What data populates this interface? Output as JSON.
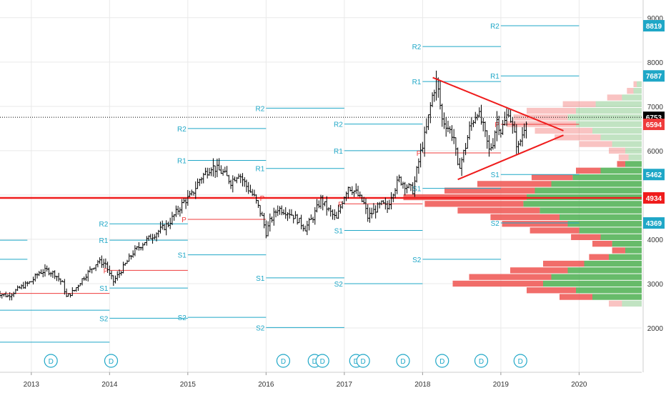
{
  "chart_data": {
    "type": "candlestick",
    "x_axis": {
      "ticks": [
        "2013",
        "2014",
        "2015",
        "2016",
        "2017",
        "2018",
        "2019",
        "2020"
      ],
      "range": [
        2012.6,
        2020.8
      ]
    },
    "y_axis": {
      "ticks": [
        2000,
        3000,
        4000,
        5000,
        6000,
        7000,
        8000,
        9000
      ],
      "range": [
        1000,
        9400
      ],
      "tick_labels": [
        "2000",
        "3000",
        "4000",
        "5000",
        "6000",
        "7000",
        "8000",
        "9000"
      ]
    },
    "price_tags": [
      {
        "value": 8819,
        "label": "8819",
        "color": "#1fa7c7",
        "text_color": "#ffffff"
      },
      {
        "value": 7687,
        "label": "7687",
        "color": "#1fa7c7",
        "text_color": "#ffffff"
      },
      {
        "value": 6753,
        "label": "6753",
        "color": "#000000",
        "text_color": "#ffffff"
      },
      {
        "value": 6594,
        "label": "6594",
        "color": "#ef3b3b",
        "text_color": "#ffffff"
      },
      {
        "value": 5462,
        "label": "5462",
        "color": "#1fa7c7",
        "text_color": "#ffffff"
      },
      {
        "value": 4934,
        "label": "4934",
        "color": "#ef1c1c",
        "text_color": "#ffffff"
      },
      {
        "value": 4369,
        "label": "4369",
        "color": "#1fa7c7",
        "text_color": "#ffffff"
      }
    ],
    "price_series": [
      [
        2012.55,
        2800
      ],
      [
        2012.7,
        2720
      ],
      [
        2012.85,
        2900
      ],
      [
        2013.0,
        3050
      ],
      [
        2013.1,
        3250
      ],
      [
        2013.2,
        3300
      ],
      [
        2013.3,
        3220
      ],
      [
        2013.4,
        3000
      ],
      [
        2013.45,
        2700
      ],
      [
        2013.55,
        2850
      ],
      [
        2013.65,
        3100
      ],
      [
        2013.75,
        3300
      ],
      [
        2013.85,
        3500
      ],
      [
        2013.95,
        3450
      ],
      [
        2014.0,
        3200
      ],
      [
        2014.05,
        3050
      ],
      [
        2014.15,
        3300
      ],
      [
        2014.3,
        3700
      ],
      [
        2014.45,
        3950
      ],
      [
        2014.6,
        4150
      ],
      [
        2014.75,
        4350
      ],
      [
        2014.85,
        4600
      ],
      [
        2014.95,
        4850
      ],
      [
        2015.05,
        5000
      ],
      [
        2015.15,
        5350
      ],
      [
        2015.3,
        5650
      ],
      [
        2015.45,
        5500
      ],
      [
        2015.55,
        5300
      ],
      [
        2015.65,
        5500
      ],
      [
        2015.75,
        5200
      ],
      [
        2015.85,
        4950
      ],
      [
        2015.95,
        4500
      ],
      [
        2016.0,
        4150
      ],
      [
        2016.05,
        4400
      ],
      [
        2016.15,
        4700
      ],
      [
        2016.3,
        4600
      ],
      [
        2016.4,
        4450
      ],
      [
        2016.5,
        4250
      ],
      [
        2016.6,
        4500
      ],
      [
        2016.7,
        4900
      ],
      [
        2016.8,
        4650
      ],
      [
        2016.9,
        4450
      ],
      [
        2016.98,
        4900
      ],
      [
        2017.05,
        5200
      ],
      [
        2017.15,
        5050
      ],
      [
        2017.25,
        4800
      ],
      [
        2017.3,
        4500
      ],
      [
        2017.38,
        4650
      ],
      [
        2017.48,
        4800
      ],
      [
        2017.55,
        4700
      ],
      [
        2017.6,
        5000
      ],
      [
        2017.7,
        5350
      ],
      [
        2017.8,
        5200
      ],
      [
        2017.88,
        5100
      ],
      [
        2017.92,
        5500
      ],
      [
        2017.98,
        6000
      ],
      [
        2018.05,
        6500
      ],
      [
        2018.12,
        7200
      ],
      [
        2018.18,
        7600
      ],
      [
        2018.25,
        6700
      ],
      [
        2018.3,
        6600
      ],
      [
        2018.4,
        6300
      ],
      [
        2018.45,
        5600
      ],
      [
        2018.5,
        5800
      ],
      [
        2018.55,
        6100
      ],
      [
        2018.6,
        6500
      ],
      [
        2018.7,
        6900
      ],
      [
        2018.78,
        6500
      ],
      [
        2018.85,
        6000
      ],
      [
        2018.9,
        6200
      ],
      [
        2018.95,
        6700
      ],
      [
        2019.0,
        6450
      ],
      [
        2019.05,
        6650
      ],
      [
        2019.1,
        6900
      ],
      [
        2019.18,
        6300
      ],
      [
        2019.22,
        6050
      ],
      [
        2019.28,
        6400
      ],
      [
        2019.33,
        6753
      ]
    ],
    "pivot_lines": [
      {
        "label": "R2",
        "x0": 2012.6,
        "x1": 2012.95,
        "value": 3980,
        "color": "#1fa7c7"
      },
      {
        "label": "R1",
        "x0": 2012.6,
        "x1": 2012.95,
        "value": 3550,
        "color": "#1fa7c7"
      },
      {
        "label": "P",
        "x0": 2012.6,
        "x1": 2014.0,
        "value": 2780,
        "color": "#ef3b3b"
      },
      {
        "label": "S1",
        "x0": 2012.6,
        "x1": 2014.0,
        "value": 2400,
        "color": "#1fa7c7"
      },
      {
        "label": "S2",
        "x0": 2012.6,
        "x1": 2014.0,
        "value": 1680,
        "color": "#1fa7c7"
      },
      {
        "label": "R2",
        "x0": 2014.0,
        "x1": 2015.0,
        "value": 4350,
        "color": "#1fa7c7"
      },
      {
        "label": "R1",
        "x0": 2014.0,
        "x1": 2015.0,
        "value": 3980,
        "color": "#1fa7c7"
      },
      {
        "label": "P",
        "x0": 2014.0,
        "x1": 2015.0,
        "value": 3300,
        "color": "#ef3b3b"
      },
      {
        "label": "S1",
        "x0": 2014.0,
        "x1": 2015.0,
        "value": 2900,
        "color": "#1fa7c7"
      },
      {
        "label": "S2",
        "x0": 2014.0,
        "x1": 2015.0,
        "value": 2220,
        "color": "#1fa7c7"
      },
      {
        "label": "R2",
        "x0": 2015.0,
        "x1": 2016.0,
        "value": 6500,
        "color": "#1fa7c7"
      },
      {
        "label": "R1",
        "x0": 2015.0,
        "x1": 2016.0,
        "value": 5780,
        "color": "#1fa7c7"
      },
      {
        "label": "P",
        "x0": 2015.0,
        "x1": 2016.0,
        "value": 4450,
        "color": "#ef3b3b"
      },
      {
        "label": "S1",
        "x0": 2015.0,
        "x1": 2016.0,
        "value": 3650,
        "color": "#1fa7c7"
      },
      {
        "label": "S2",
        "x0": 2015.0,
        "x1": 2016.0,
        "value": 2240,
        "color": "#1fa7c7"
      },
      {
        "label": "R2",
        "x0": 2016.0,
        "x1": 2017.0,
        "value": 6960,
        "color": "#1fa7c7"
      },
      {
        "label": "R1",
        "x0": 2016.0,
        "x1": 2017.0,
        "value": 5600,
        "color": "#1fa7c7"
      },
      {
        "label": "P",
        "x0": 2016.0,
        "x1": 2017.0,
        "value": 4934,
        "color": "#ef3b3b"
      },
      {
        "label": "S1",
        "x0": 2016.0,
        "x1": 2017.0,
        "value": 3130,
        "color": "#1fa7c7"
      },
      {
        "label": "S2",
        "x0": 2016.0,
        "x1": 2017.0,
        "value": 2010,
        "color": "#1fa7c7"
      },
      {
        "label": "R2",
        "x0": 2017.0,
        "x1": 2018.0,
        "value": 6600,
        "color": "#1fa7c7"
      },
      {
        "label": "R1",
        "x0": 2017.0,
        "x1": 2018.0,
        "value": 6000,
        "color": "#1fa7c7"
      },
      {
        "label": "P",
        "x0": 2017.0,
        "x1": 2018.0,
        "value": 4800,
        "color": "#ef3b3b"
      },
      {
        "label": "S1",
        "x0": 2017.0,
        "x1": 2018.0,
        "value": 4200,
        "color": "#1fa7c7"
      },
      {
        "label": "S2",
        "x0": 2017.0,
        "x1": 2018.0,
        "value": 3000,
        "color": "#1fa7c7"
      },
      {
        "label": "R2",
        "x0": 2018.0,
        "x1": 2019.0,
        "value": 8350,
        "color": "#1fa7c7"
      },
      {
        "label": "R1",
        "x0": 2018.0,
        "x1": 2019.0,
        "value": 7560,
        "color": "#1fa7c7"
      },
      {
        "label": "P",
        "x0": 2018.0,
        "x1": 2019.0,
        "value": 5950,
        "color": "#ef3b3b"
      },
      {
        "label": "S1",
        "x0": 2018.0,
        "x1": 2019.0,
        "value": 5150,
        "color": "#1fa7c7"
      },
      {
        "label": "S2",
        "x0": 2018.0,
        "x1": 2019.0,
        "value": 3550,
        "color": "#1fa7c7"
      },
      {
        "label": "R2",
        "x0": 2019.0,
        "x1": 2020.0,
        "value": 8819,
        "color": "#1fa7c7"
      },
      {
        "label": "R1",
        "x0": 2019.0,
        "x1": 2020.0,
        "value": 7687,
        "color": "#1fa7c7"
      },
      {
        "label": "P",
        "x0": 2019.0,
        "x1": 2020.0,
        "value": 6594,
        "color": "#ef3b3b"
      },
      {
        "label": "S1",
        "x0": 2019.0,
        "x1": 2020.0,
        "value": 5462,
        "color": "#1fa7c7"
      },
      {
        "label": "S2",
        "x0": 2019.0,
        "x1": 2020.0,
        "value": 4369,
        "color": "#1fa7c7"
      }
    ],
    "horizontal_line": {
      "value": 4934,
      "color": "#ef1c1c"
    },
    "dotted_line": {
      "value": 6753,
      "color": "#000000"
    },
    "triangle": {
      "color": "#ef1c1c",
      "upper": [
        [
          2018.13,
          7650
        ],
        [
          2019.8,
          6450
        ]
      ],
      "lower": [
        [
          2018.45,
          5350
        ],
        [
          2019.8,
          6350
        ]
      ]
    },
    "dividend_markers": [
      2013.25,
      2014.02,
      2016.22,
      2016.62,
      2016.72,
      2017.15,
      2017.24,
      2017.75,
      2018.25,
      2018.75,
      2019.25
    ],
    "volume_profile": [
      {
        "price": 7500,
        "up": 0.03,
        "down": 0.02
      },
      {
        "price": 7350,
        "up": 0.05,
        "down": 0.04
      },
      {
        "price": 7200,
        "up": 0.12,
        "down": 0.09
      },
      {
        "price": 7050,
        "up": 0.28,
        "down": 0.2
      },
      {
        "price": 6900,
        "up": 0.4,
        "down": 0.3
      },
      {
        "price": 6750,
        "up": 0.45,
        "down": 0.33
      },
      {
        "price": 6600,
        "up": 0.4,
        "down": 0.42
      },
      {
        "price": 6450,
        "up": 0.3,
        "down": 0.35
      },
      {
        "price": 6300,
        "up": 0.25,
        "down": 0.28
      },
      {
        "price": 6150,
        "up": 0.18,
        "down": 0.2
      },
      {
        "price": 6000,
        "up": 0.1,
        "down": 0.1
      },
      {
        "price": 5850,
        "up": 0.08,
        "down": 0.06
      },
      {
        "price": 5700,
        "up": 0.1,
        "down": 0.05
      },
      {
        "price": 5550,
        "up": 0.25,
        "down": 0.15
      },
      {
        "price": 5400,
        "up": 0.42,
        "down": 0.25
      },
      {
        "price": 5250,
        "up": 0.55,
        "down": 0.45
      },
      {
        "price": 5100,
        "up": 0.65,
        "down": 0.55
      },
      {
        "price": 4950,
        "up": 0.7,
        "down": 0.75
      },
      {
        "price": 4800,
        "up": 0.72,
        "down": 0.6
      },
      {
        "price": 4650,
        "up": 0.62,
        "down": 0.5
      },
      {
        "price": 4500,
        "up": 0.5,
        "down": 0.42
      },
      {
        "price": 4350,
        "up": 0.45,
        "down": 0.4
      },
      {
        "price": 4200,
        "up": 0.38,
        "down": 0.3
      },
      {
        "price": 4050,
        "up": 0.25,
        "down": 0.18
      },
      {
        "price": 3900,
        "up": 0.18,
        "down": 0.12
      },
      {
        "price": 3750,
        "up": 0.1,
        "down": 0.08
      },
      {
        "price": 3600,
        "up": 0.2,
        "down": 0.12
      },
      {
        "price": 3450,
        "up": 0.35,
        "down": 0.25
      },
      {
        "price": 3300,
        "up": 0.45,
        "down": 0.35
      },
      {
        "price": 3150,
        "up": 0.55,
        "down": 0.5
      },
      {
        "price": 3000,
        "up": 0.6,
        "down": 0.55
      },
      {
        "price": 2850,
        "up": 0.4,
        "down": 0.3
      },
      {
        "price": 2700,
        "up": 0.3,
        "down": 0.2
      },
      {
        "price": 2550,
        "up": 0.12,
        "down": 0.08
      }
    ],
    "colors": {
      "candle_up": "#000000",
      "candle_down": "#000000",
      "grid": "#e9e9e9",
      "axis_text": "#333333",
      "profile_up": "#4caf50",
      "profile_down": "#ef5350",
      "dividend": "#1fa7c7"
    }
  }
}
